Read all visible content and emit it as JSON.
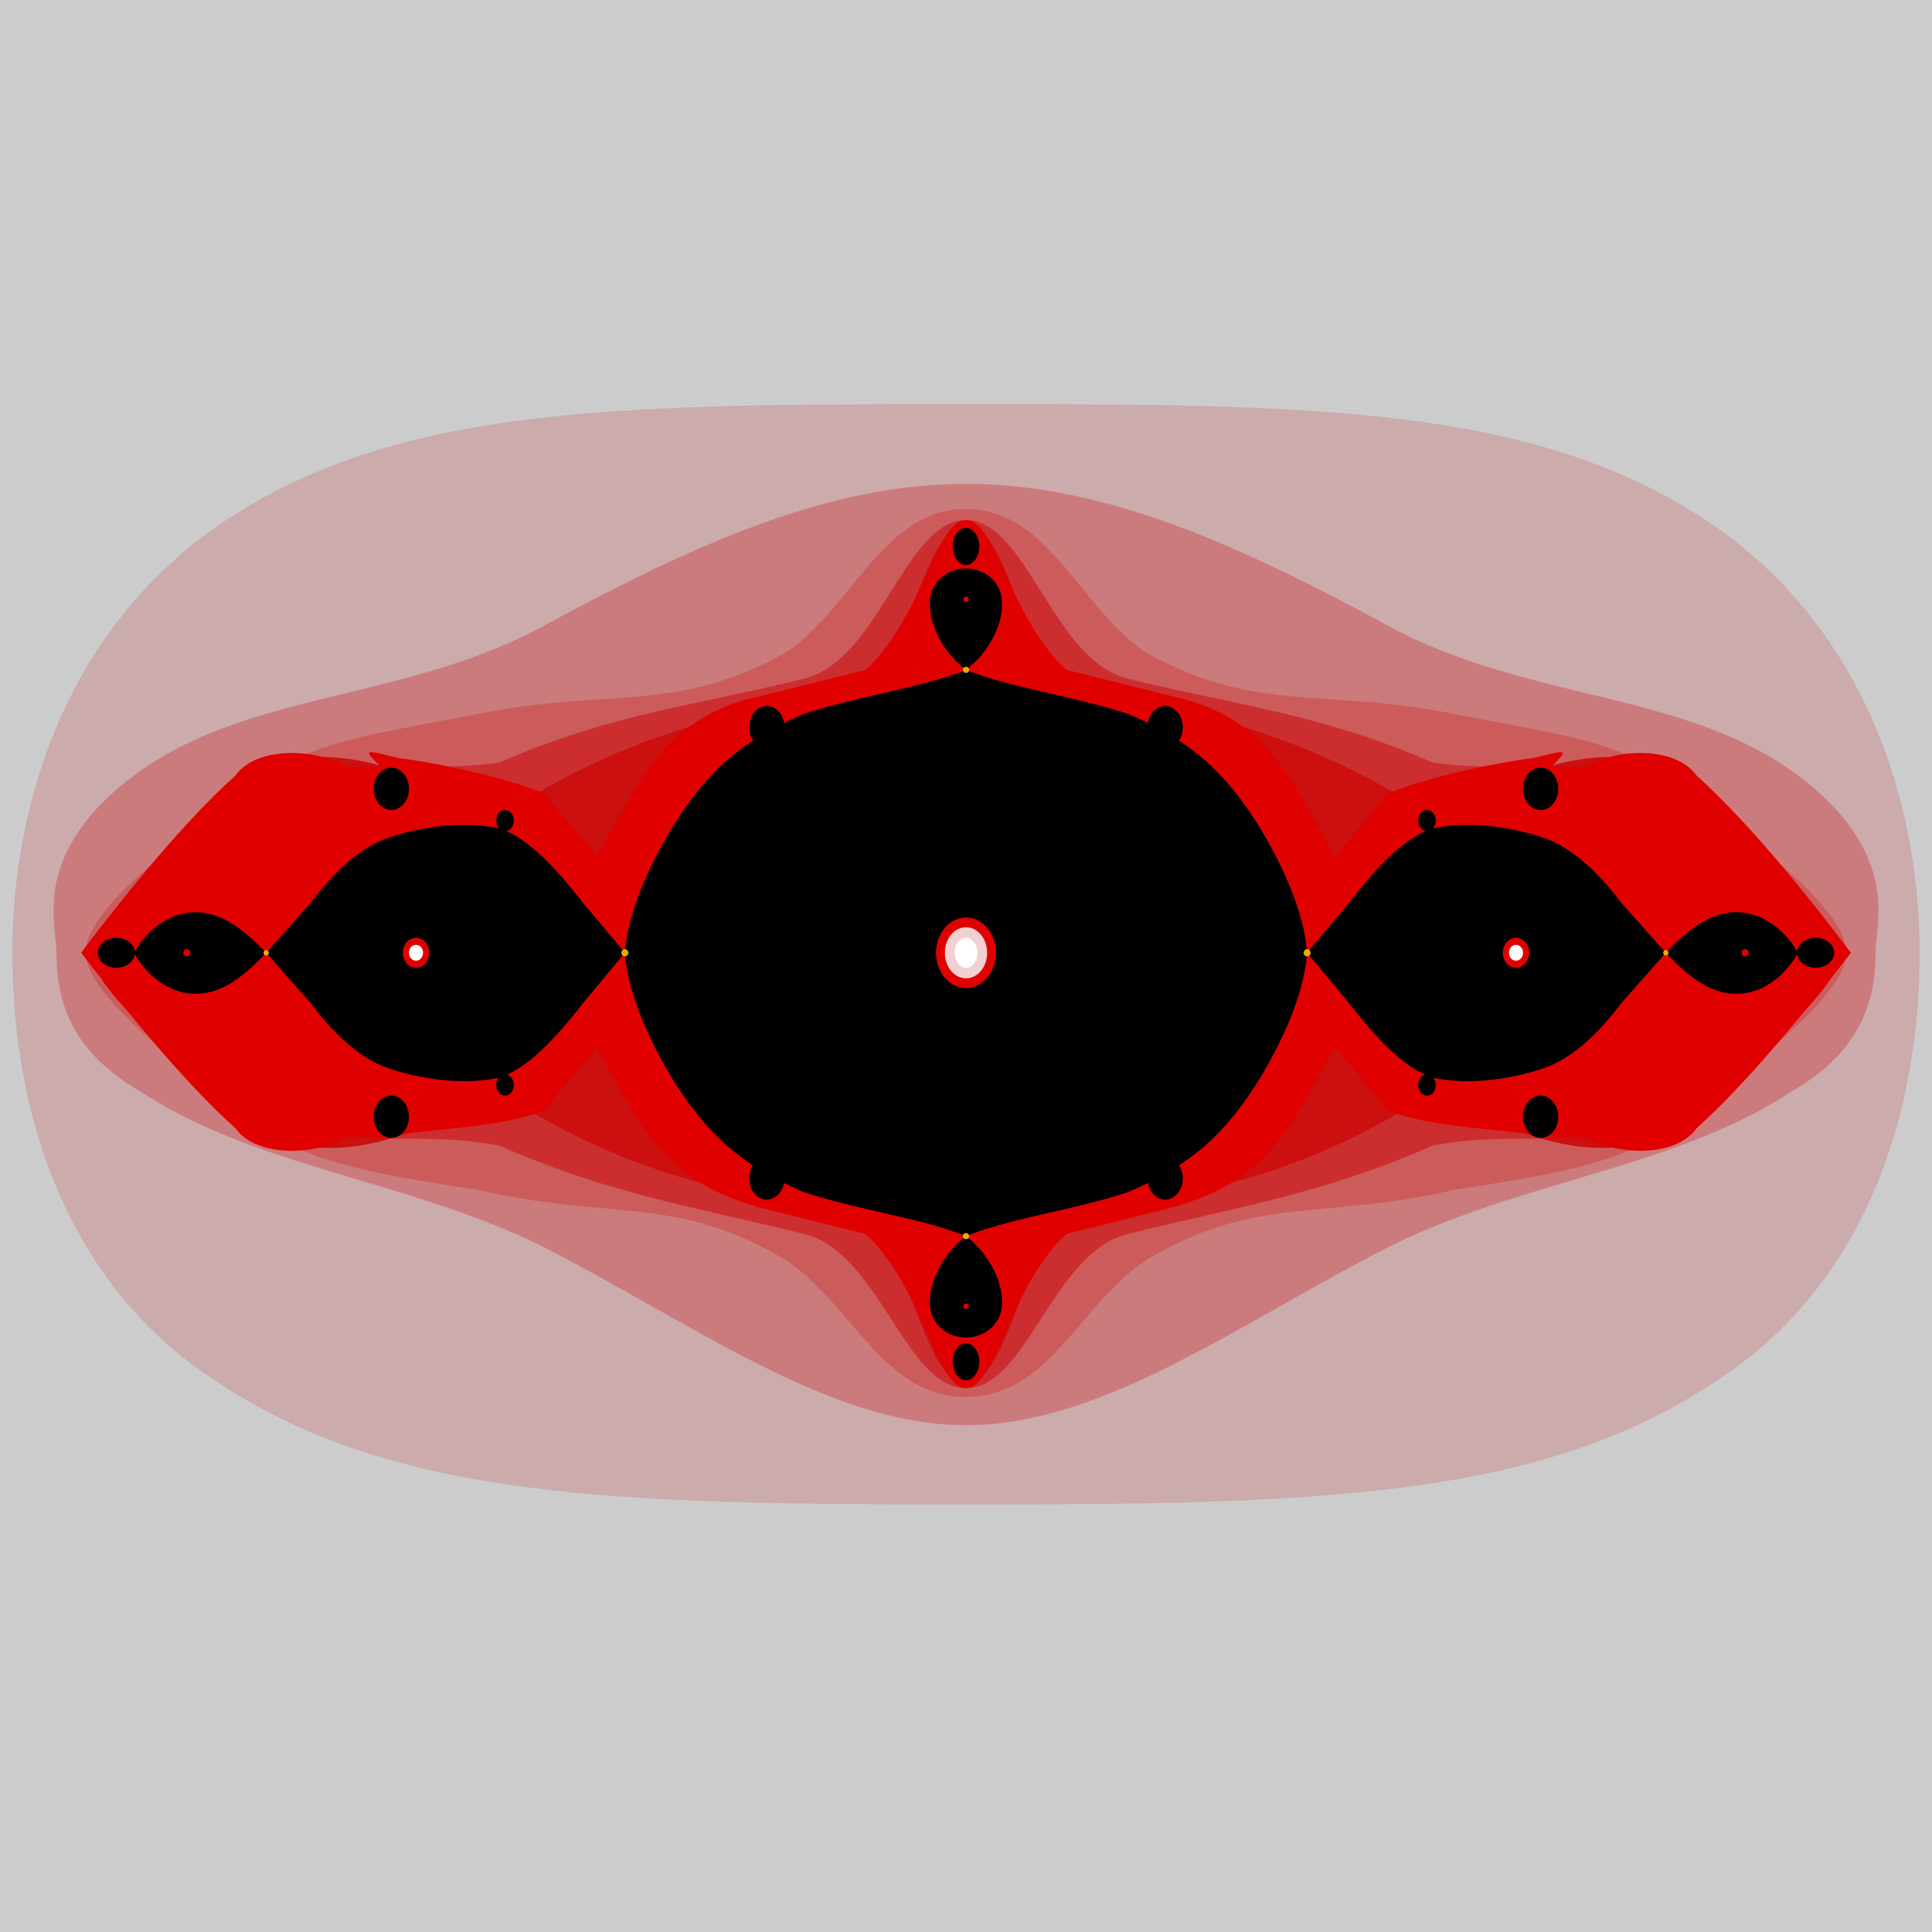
{
  "image": {
    "subject": "julia-set-fractal",
    "colors": {
      "background": "#cccccc",
      "band_outer": "#ccabad",
      "band_2": "#cc7b7d",
      "band_3": "#cc5c5c",
      "band_4": "#cc2e2f",
      "band_5": "#cc0f0f",
      "band_inner": "#e00000",
      "boundary_glow": "#ffd000",
      "filled_set": "#000000",
      "center_highlight": "#ffffff"
    }
  }
}
